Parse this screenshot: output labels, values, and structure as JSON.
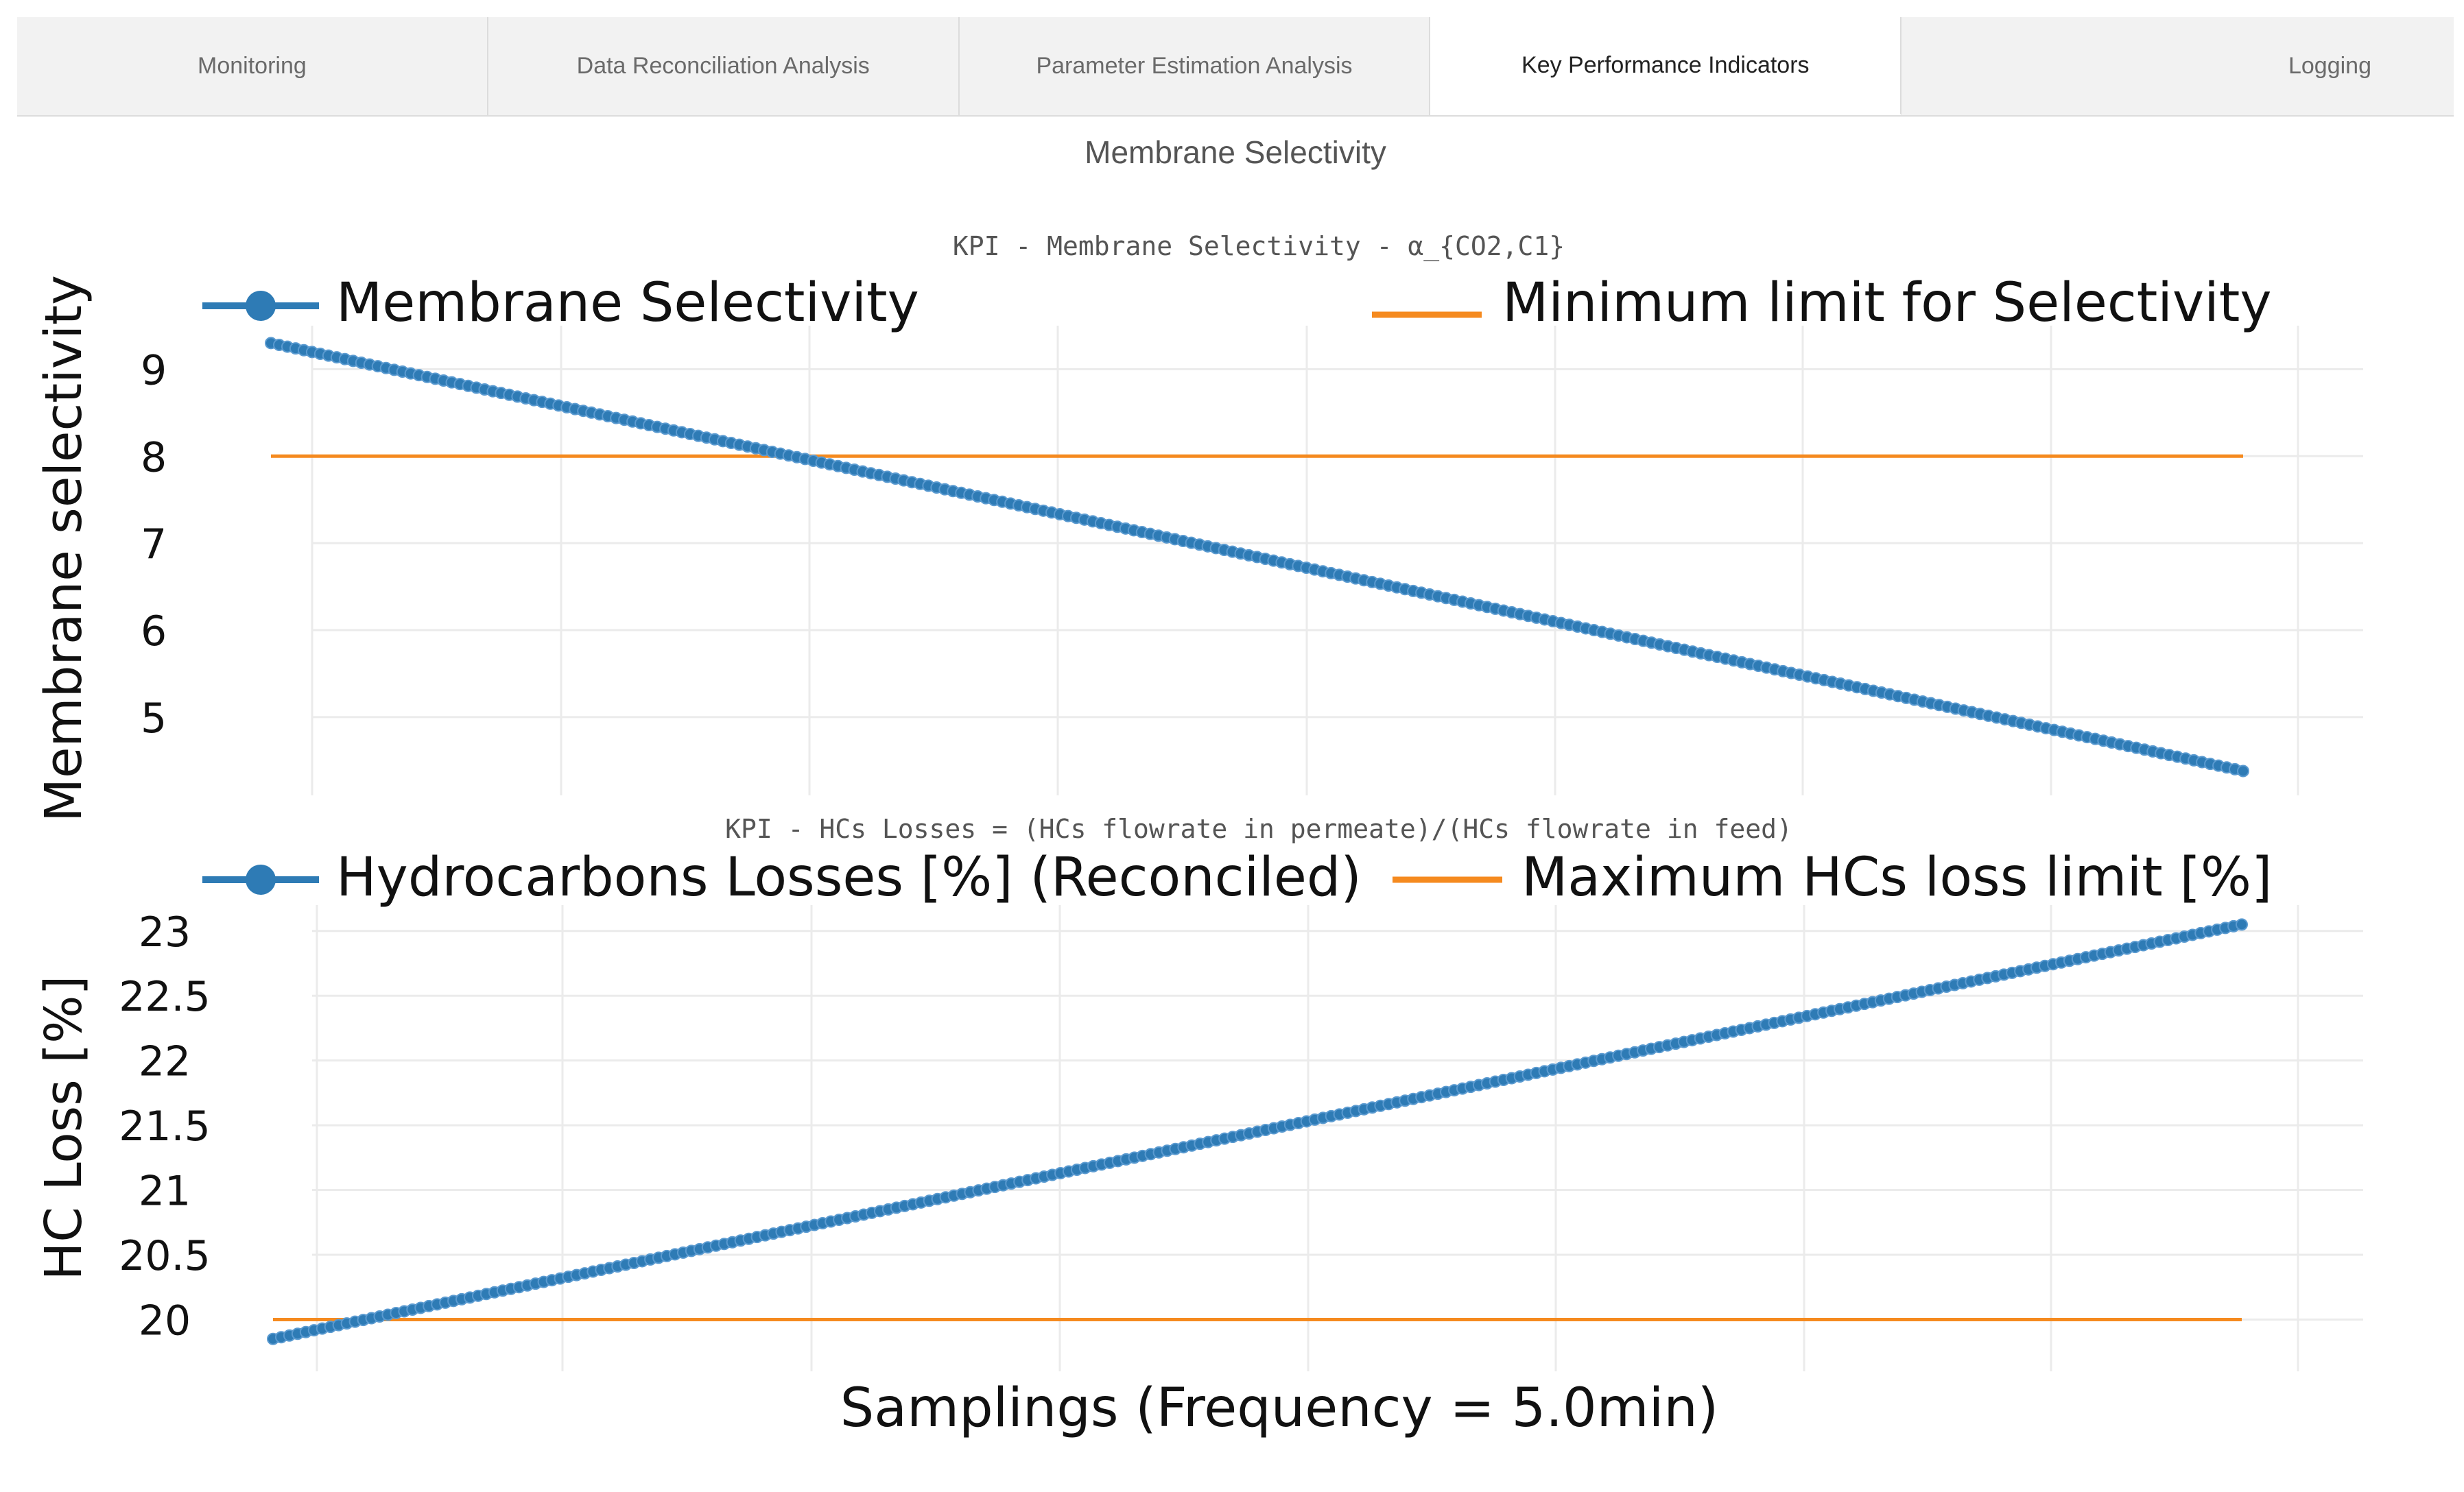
{
  "tabs": [
    {
      "label": "Monitoring",
      "active": false
    },
    {
      "label": "Data Reconciliation Analysis",
      "active": false
    },
    {
      "label": "Parameter Estimation Analysis",
      "active": false
    },
    {
      "label": "Key Performance Indicators",
      "active": true
    },
    {
      "label": "Logging",
      "active": false
    }
  ],
  "section_title": "Membrane Selectivity",
  "xlabel": "Samplings (Frequency = 5.0min)",
  "colors": {
    "series": "#2e7bb5",
    "limit": "#f58a1f",
    "grid": "#ebebeb"
  },
  "chart_data": [
    {
      "type": "line",
      "title": "KPI - Membrane Selectivity - α_{CO2,C1}",
      "ylabel": "Membrane selectivity",
      "ylim": [
        4.1,
        9.5
      ],
      "yticks": [
        5,
        6,
        7,
        8,
        9
      ],
      "yticklabels": [
        "5",
        "6",
        "7",
        "8",
        "9"
      ],
      "xlim": [
        0,
        100
      ],
      "series": [
        {
          "name": "Membrane Selectivity",
          "style": "markers+line",
          "x": [
            0,
            100
          ],
          "y": [
            9.3,
            4.38
          ]
        },
        {
          "name": "Minimum limit for Selectivity",
          "style": "line",
          "x": [
            0,
            100
          ],
          "y": [
            8.0,
            8.0
          ]
        }
      ]
    },
    {
      "type": "line",
      "title": "KPI - HCs Losses = (HCs flowrate in permeate)/(HCs flowrate in feed)",
      "ylabel": "HC Loss [%]",
      "ylim": [
        19.6,
        23.2
      ],
      "yticks": [
        20,
        20.5,
        21,
        21.5,
        22,
        22.5,
        23
      ],
      "yticklabels": [
        "20",
        "20.5",
        "21",
        "21.5",
        "22",
        "22.5",
        "23"
      ],
      "xlim": [
        0,
        100
      ],
      "series": [
        {
          "name": "Hydrocarbons Losses [%] (Reconciled)",
          "style": "markers+line",
          "x": [
            0,
            100
          ],
          "y": [
            19.85,
            23.05
          ]
        },
        {
          "name": "Maximum HCs loss limit [%]",
          "style": "line",
          "x": [
            0,
            100
          ],
          "y": [
            20.0,
            20.0
          ]
        }
      ]
    }
  ]
}
